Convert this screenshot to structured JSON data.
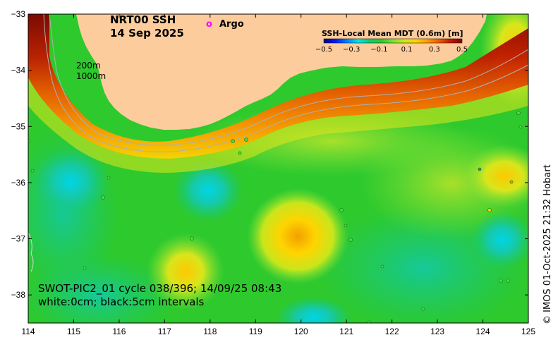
{
  "title": {
    "line1": "NRT00 SSH",
    "line2": "14 Sep 2025"
  },
  "argo_legend": {
    "marker": "o",
    "label": "Argo",
    "color": "#ff00ff"
  },
  "colorbar": {
    "title": "SSH-Local Mean MDT (0.6m) [m]",
    "ticks": [
      "−0.5",
      "−0.3",
      "−0.1",
      "0.1",
      "0.3",
      "0.5"
    ],
    "colors": [
      "#00007f",
      "#0019ff",
      "#0080ff",
      "#00e5e6",
      "#16c96f",
      "#2ec92d",
      "#7be23a",
      "#d2e61c",
      "#ffd400",
      "#ff9a00",
      "#ee5c00",
      "#c01a00",
      "#7f0000"
    ]
  },
  "depth_labels": [
    "200m",
    "1000m"
  ],
  "caption": {
    "line1": "SWOT-PIC2_01 cycle 038/396; 14/09/25 08:43",
    "line2": "white:0cm; black:5cm intervals"
  },
  "credit": "© IMOS 01-Oct-2025 21:32 Hobart",
  "axes": {
    "lon_ticks": [
      "114",
      "115",
      "116",
      "117",
      "118",
      "119",
      "120",
      "121",
      "122",
      "123",
      "124",
      "125"
    ],
    "lat_ticks": [
      "−33",
      "−34",
      "−35",
      "−36",
      "−37",
      "−38"
    ],
    "xlim": [
      114,
      125
    ],
    "ylim": [
      -38.5,
      -33
    ]
  },
  "colors": {
    "land": "#fccc9c",
    "ocean_base": "#2ec92d",
    "argo": "#ff00ff",
    "contour": "#b0b0b0"
  }
}
